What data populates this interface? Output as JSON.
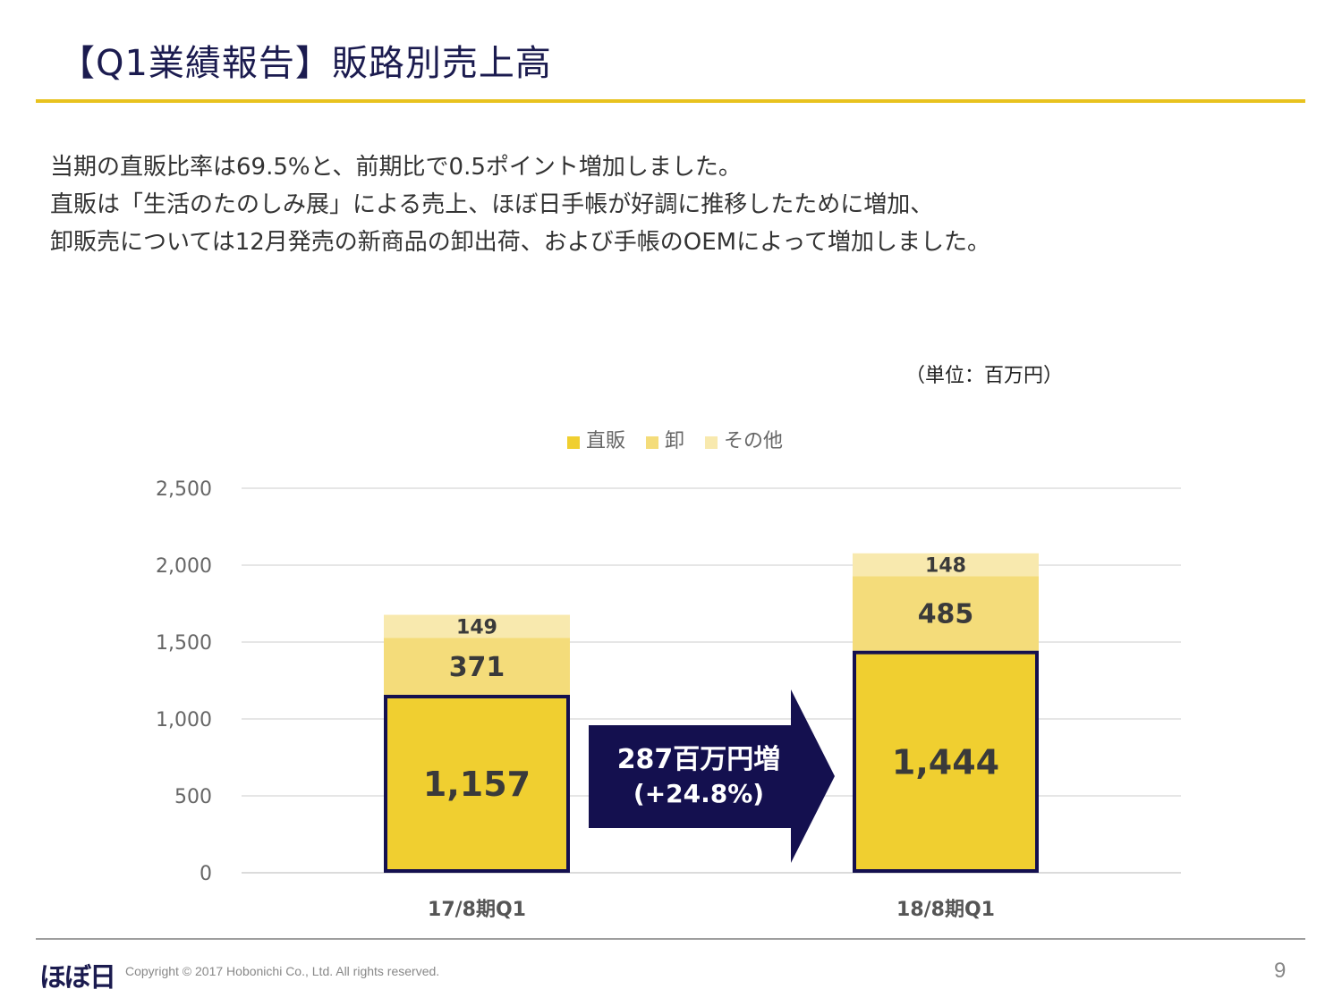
{
  "page": {
    "title": "【Q1業績報告】販路別売上高",
    "description": [
      "当期の直販比率は69.5%と、前期比で0.5ポイント増加しました。",
      "直販は「生活のたのしみ展」による売上、ほぼ日手帳が好調に推移したために増加、",
      "卸販売については12月発売の新商品の卸出荷、および手帳のOEMによって増加しました。"
    ],
    "unit": "（単位：百万円）",
    "footer": {
      "logo": "ほぼ日",
      "copyright": "Copyright © 2017 Hobonichi Co., Ltd. All rights reserved.",
      "page_number": "9"
    }
  },
  "chart_data": {
    "type": "bar",
    "stacked": true,
    "categories": [
      "17/8期Q1",
      "18/8期Q1"
    ],
    "series": [
      {
        "name": "直販",
        "values": [
          1157,
          1444
        ],
        "labels": [
          "1,157",
          "1,444"
        ],
        "color": "#f0cf30",
        "outline": "#14104f"
      },
      {
        "name": "卸",
        "values": [
          371,
          485
        ],
        "labels": [
          "371",
          "485"
        ],
        "color": "#f4dc7a"
      },
      {
        "name": "その他",
        "values": [
          149,
          148
        ],
        "labels": [
          "149",
          "148"
        ],
        "color": "#f8e9ae"
      }
    ],
    "ylim": [
      0,
      2500
    ],
    "yticks": [
      0,
      500,
      1000,
      1500,
      2000,
      2500
    ],
    "ytick_labels": [
      "0",
      "500",
      "1,000",
      "1,500",
      "2,000",
      "2,500"
    ],
    "grid": true,
    "legend_position": "top-center",
    "annotation": {
      "line1": "287百万円増",
      "line2": "(+24.8%)",
      "color": "#14104f"
    }
  }
}
